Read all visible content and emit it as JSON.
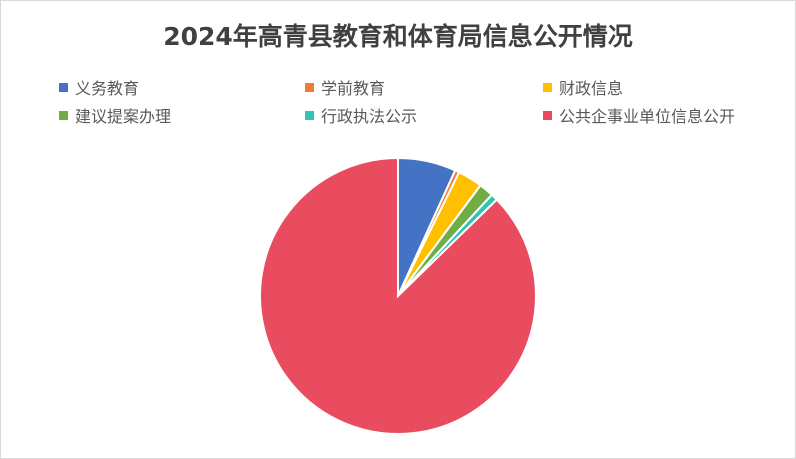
{
  "chart_data": {
    "type": "pie",
    "title": "2024年高青县教育和体育局信息公开情况",
    "legend_position": "top",
    "categories": [
      "义务教育",
      "学前教育",
      "财政信息",
      "建议提案办理",
      "行政执法公示",
      "公共企事业单位信息公开"
    ],
    "values": [
      6.8,
      0.5,
      2.9,
      1.7,
      0.8,
      87.3
    ],
    "colors": [
      "#4472C4",
      "#ED7D31",
      "#FFC000",
      "#70AD47",
      "#2EC4B6",
      "#E84C5E"
    ],
    "start_angle": "12 o'clock",
    "direction": "clockwise"
  }
}
